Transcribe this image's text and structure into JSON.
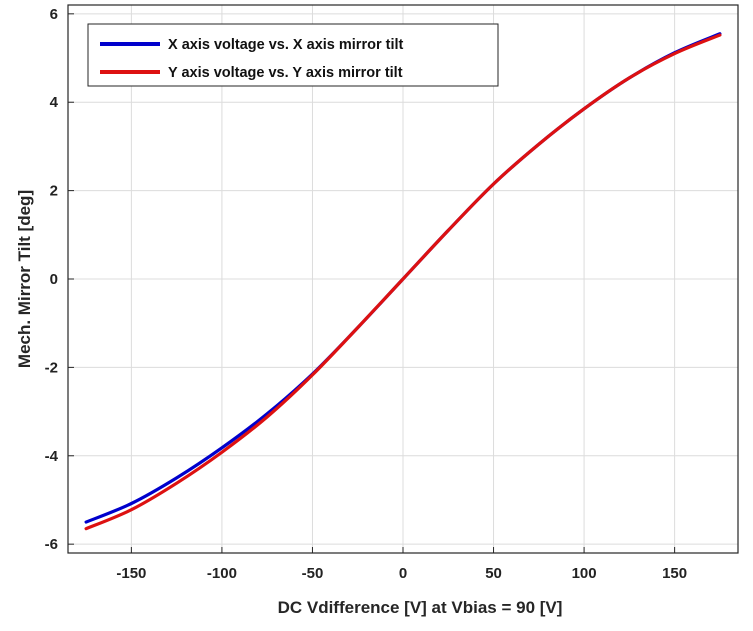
{
  "chart_data": {
    "type": "line",
    "title": "",
    "xlabel": "DC Vdifference [V] at Vbias = 90 [V]",
    "ylabel": "Mech. Mirror Tilt [deg]",
    "xlim": [
      -185,
      185
    ],
    "ylim": [
      -6.2,
      6.2
    ],
    "xticks": [
      -150,
      -100,
      -50,
      0,
      50,
      100,
      150
    ],
    "yticks": [
      -6,
      -4,
      -2,
      0,
      2,
      4,
      6
    ],
    "grid": true,
    "legend_position": "top-left",
    "series": [
      {
        "name": "X axis voltage vs. X axis mirror tilt",
        "color": "#0000cc",
        "x": [
          -175,
          -150,
          -125,
          -100,
          -75,
          -50,
          -25,
          0,
          25,
          50,
          75,
          100,
          125,
          150,
          175
        ],
        "y": [
          -5.5,
          -5.08,
          -4.5,
          -3.82,
          -3.05,
          -2.15,
          -1.1,
          0.0,
          1.1,
          2.15,
          3.05,
          3.85,
          4.55,
          5.12,
          5.55
        ]
      },
      {
        "name": "Y axis voltage vs. Y axis mirror tilt",
        "color": "#dd1111",
        "x": [
          -175,
          -150,
          -125,
          -100,
          -75,
          -50,
          -25,
          0,
          25,
          50,
          75,
          100,
          125,
          150,
          175
        ],
        "y": [
          -5.65,
          -5.22,
          -4.62,
          -3.92,
          -3.12,
          -2.17,
          -1.1,
          0.0,
          1.1,
          2.15,
          3.05,
          3.85,
          4.55,
          5.1,
          5.52
        ]
      }
    ]
  }
}
